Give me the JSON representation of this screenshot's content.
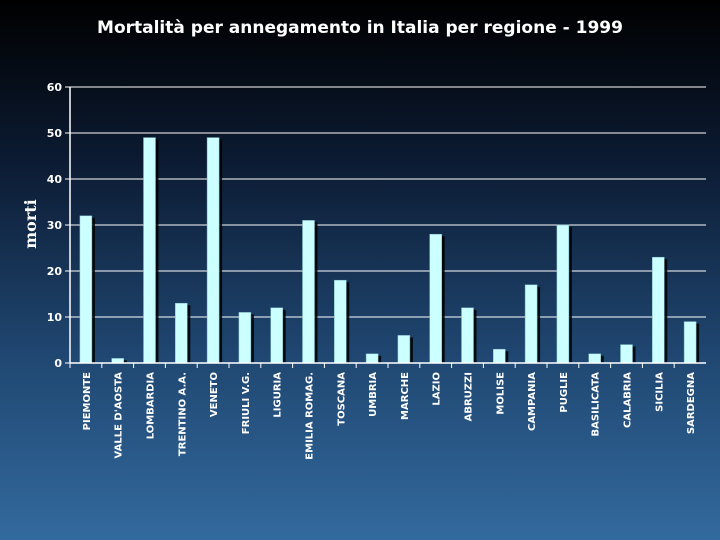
{
  "chart_data": {
    "type": "bar",
    "title": "Mortalità per annegamento in Italia per regione - 1999",
    "xlabel": "",
    "ylabel": "morti",
    "ylim": [
      0,
      60
    ],
    "yticks": [
      0,
      10,
      20,
      30,
      40,
      50,
      60
    ],
    "grid": true,
    "categories": [
      "PIEMONTE",
      "VALLE D'AOSTA",
      "LOMBARDIA",
      "TRENTINO A.A.",
      "VENETO",
      "FRIULI V.G.",
      "LIGURIA",
      "EMILIA ROMAG.",
      "TOSCANA",
      "UMBRIA",
      "MARCHE",
      "LAZIO",
      "ABRUZZI",
      "MOLISE",
      "CAMPANIA",
      "PUGLIE",
      "BASILICATA",
      "CALABRIA",
      "SICILIA",
      "SARDEGNA"
    ],
    "values": [
      32,
      1,
      49,
      13,
      49,
      11,
      12,
      31,
      18,
      2,
      6,
      28,
      12,
      3,
      17,
      30,
      2,
      4,
      23,
      9
    ],
    "colors": {
      "bar": "#ccffff",
      "bar_shadow": "#000000",
      "grid": "#ffffff",
      "axis": "#ffffff",
      "text": "#ffffff"
    }
  }
}
